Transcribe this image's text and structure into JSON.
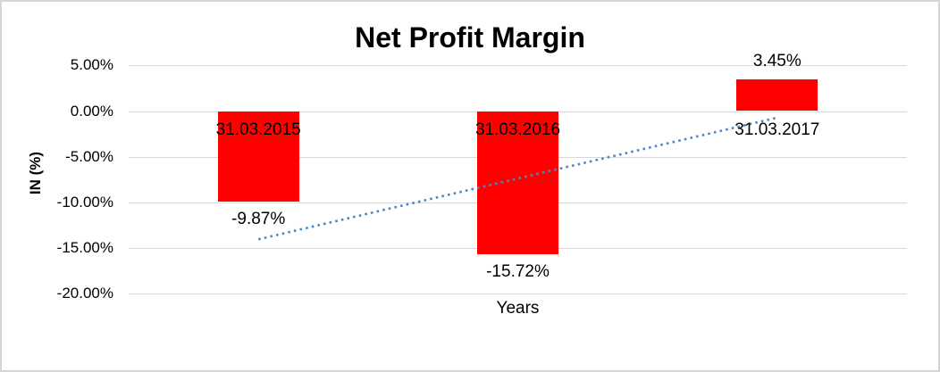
{
  "window": {
    "background": "#ffffff",
    "border_color": "#d6d6d6"
  },
  "chart_data": {
    "type": "bar",
    "title": "Net Profit Margin",
    "xlabel": "Years",
    "ylabel": "IN (%)",
    "categories": [
      "31.03.2015",
      "31.03.2016",
      "31.03.2017"
    ],
    "series": [
      {
        "name": "Net Profit Margin",
        "values": [
          -9.87,
          -15.72,
          3.45
        ]
      }
    ],
    "value_labels": [
      "-9.87%",
      "-15.72%",
      "3.45%"
    ],
    "ylim": [
      -20,
      5
    ],
    "yticks": [
      {
        "value": 5,
        "label": "5.00%"
      },
      {
        "value": 0,
        "label": "0.00%"
      },
      {
        "value": -5,
        "label": "-5.00%"
      },
      {
        "value": -10,
        "label": "-10.00%"
      },
      {
        "value": -15,
        "label": "-15.00%"
      },
      {
        "value": -20,
        "label": "-20.00%"
      }
    ],
    "grid": true,
    "legend": false,
    "colors": {
      "bar": "#ff0000",
      "trendline": "#4b86c8",
      "gridline": "#d9d9d9",
      "text": "#000000"
    },
    "trendline": {
      "type": "linear",
      "style": "dotted",
      "from": {
        "category_index": 0,
        "value": -14.04
      },
      "to": {
        "category_index": 2,
        "value": -0.72
      }
    }
  }
}
